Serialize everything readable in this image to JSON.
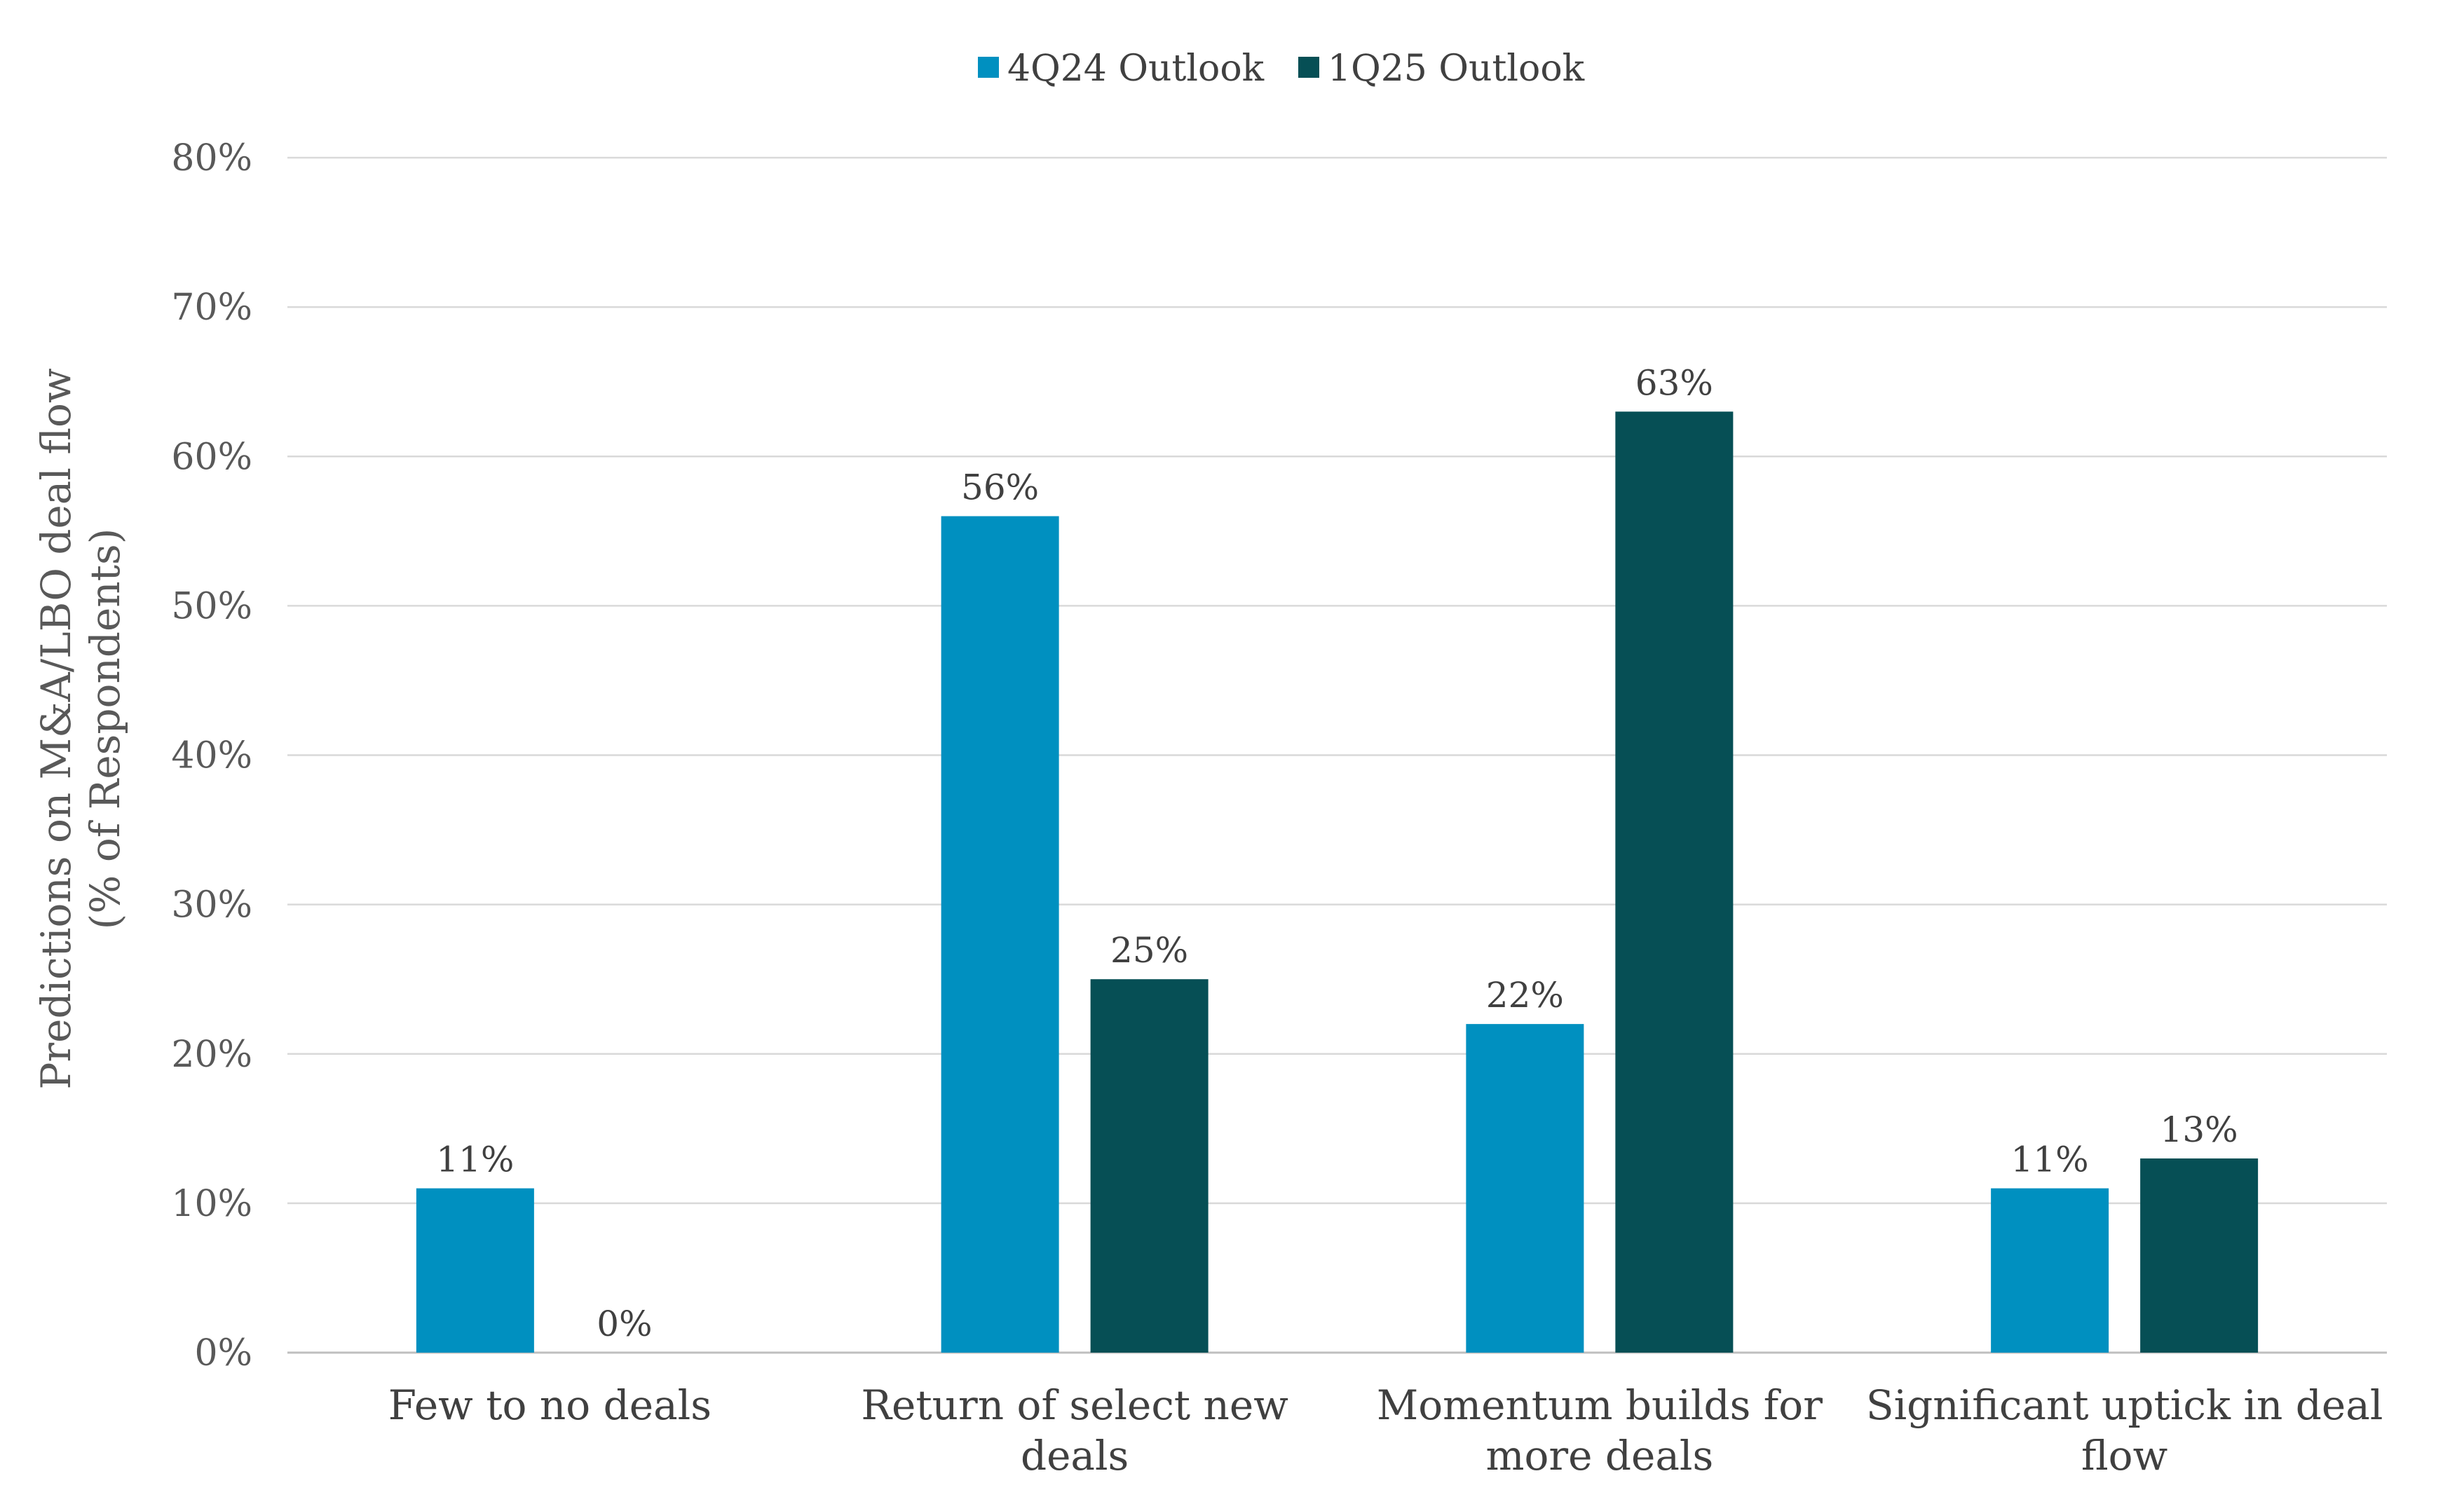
{
  "chart_data": {
    "type": "bar",
    "title": "",
    "xlabel": "",
    "ylabel_lines": [
      "Predictions on M&A/LBO deal flow",
      "(% of Respondents)"
    ],
    "categories": [
      [
        "Few to no deals"
      ],
      [
        "Return of select new",
        "deals"
      ],
      [
        "Momentum builds for",
        "more deals"
      ],
      [
        "Significant uptick in deal",
        "flow"
      ]
    ],
    "series": [
      {
        "name": "4Q24 Outlook",
        "color": "#0090C0",
        "values": [
          11,
          56,
          22,
          11
        ],
        "labels": [
          "11%",
          "56%",
          "22%",
          "11%"
        ]
      },
      {
        "name": "1Q25 Outlook",
        "color": "#064F55",
        "values": [
          0,
          25,
          63,
          13
        ],
        "labels": [
          "0%",
          "25%",
          "63%",
          "13%"
        ]
      }
    ],
    "ylim": [
      0,
      80
    ],
    "yticks": [
      0,
      10,
      20,
      30,
      40,
      50,
      60,
      70,
      80
    ],
    "ytick_labels": [
      "0%",
      "10%",
      "20%",
      "30%",
      "40%",
      "50%",
      "60%",
      "70%",
      "80%"
    ],
    "grid": true,
    "legend_position": "top-center"
  }
}
